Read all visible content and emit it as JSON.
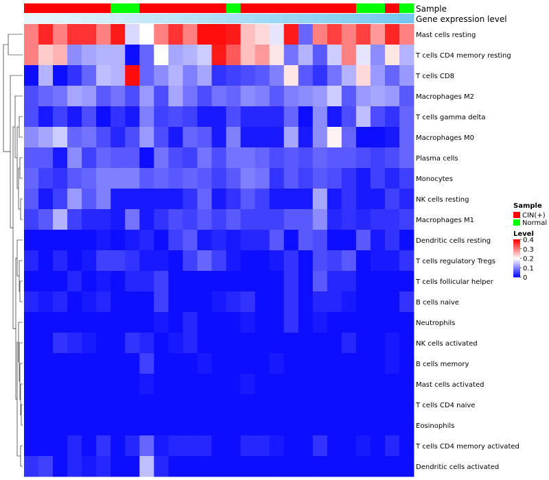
{
  "chart_data": {
    "type": "heatmap",
    "title": "",
    "annotation_tracks": [
      {
        "name": "Sample",
        "values": [
          "CIN(+)",
          "CIN(+)",
          "CIN(+)",
          "CIN(+)",
          "CIN(+)",
          "CIN(+)",
          "Normal",
          "Normal",
          "CIN(+)",
          "CIN(+)",
          "CIN(+)",
          "CIN(+)",
          "CIN(+)",
          "CIN(+)",
          "Normal",
          "CIN(+)",
          "CIN(+)",
          "CIN(+)",
          "CIN(+)",
          "CIN(+)",
          "CIN(+)",
          "CIN(+)",
          "CIN(+)",
          "Normal",
          "Normal",
          "CIN(+)",
          "Normal"
        ]
      },
      {
        "name": "Gene expression level",
        "values": [
          0.05,
          0.08,
          0.1,
          0.13,
          0.16,
          0.19,
          0.22,
          0.25,
          0.28,
          0.31,
          0.34,
          0.37,
          0.4,
          0.43,
          0.46,
          0.49,
          0.52,
          0.55,
          0.58,
          0.61,
          0.64,
          0.67,
          0.7,
          0.73,
          0.76,
          0.79,
          0.82
        ]
      }
    ],
    "rows": [
      "Mast cells resting",
      "T cells CD4 memory resting",
      "T cells CD8",
      "Macrophages M2",
      "T cells gamma delta",
      "Macrophages M0",
      "Plasma cells",
      "Monocytes",
      "NK cells resting",
      "Macrophages M1",
      "Dendritic cells resting",
      "T cells regulatory  Tregs",
      "T cells follicular helper",
      "B cells naive",
      "Neutrophils",
      "NK cells activated",
      "B cells memory",
      "Mast cells activated",
      "T cells CD4 naive",
      "Eosinophils",
      "T cells CD4 memory activated",
      "Dendritic cells activated"
    ],
    "values": [
      [
        0.3,
        0.37,
        0.3,
        0.36,
        0.36,
        0.3,
        0.38,
        0.17,
        0.2,
        0.3,
        0.36,
        0.3,
        0.39,
        0.39,
        0.38,
        0.25,
        0.23,
        0.18,
        0.38,
        0.08,
        0.3,
        0.35,
        0.3,
        0.35,
        0.28,
        0.37,
        0.3
      ],
      [
        0.3,
        0.24,
        0.26,
        0.11,
        0.13,
        0.14,
        0.14,
        0.01,
        0.08,
        0.2,
        0.13,
        0.14,
        0.16,
        0.38,
        0.33,
        0.25,
        0.28,
        0.22,
        0.09,
        0.14,
        0.07,
        0.16,
        0.3,
        0.18,
        0.11,
        0.22,
        0.14
      ],
      [
        0.01,
        0.14,
        0.01,
        0.04,
        0.08,
        0.15,
        0.14,
        0.39,
        0.08,
        0.11,
        0.14,
        0.1,
        0.13,
        0.04,
        0.05,
        0.06,
        0.07,
        0.1,
        0.22,
        0.07,
        0.04,
        0.09,
        0.14,
        0.23,
        0.12,
        0.08,
        0.12
      ],
      [
        0.06,
        0.08,
        0.09,
        0.13,
        0.12,
        0.07,
        0.09,
        0.06,
        0.12,
        0.06,
        0.13,
        0.09,
        0.06,
        0.09,
        0.08,
        0.11,
        0.1,
        0.07,
        0.1,
        0.11,
        0.12,
        0.16,
        0.07,
        0.12,
        0.13,
        0.12,
        0.07
      ],
      [
        0.06,
        0.02,
        0.05,
        0.02,
        0.06,
        0.01,
        0.04,
        0.02,
        0.1,
        0.05,
        0.06,
        0.05,
        0.02,
        0.02,
        0.06,
        0.03,
        0.03,
        0.03,
        0.08,
        0.01,
        0.11,
        0.02,
        0.06,
        0.15,
        0.06,
        0.04,
        0.08
      ],
      [
        0.11,
        0.13,
        0.16,
        0.08,
        0.09,
        0.06,
        0.03,
        0.06,
        0.12,
        0.06,
        0.02,
        0.08,
        0.07,
        0.02,
        0.1,
        0.02,
        0.02,
        0.02,
        0.13,
        0.02,
        0.11,
        0.21,
        0.08,
        0.01,
        0.01,
        0.02,
        0.08
      ],
      [
        0.07,
        0.07,
        0.02,
        0.11,
        0.05,
        0.08,
        0.07,
        0.07,
        0.01,
        0.09,
        0.06,
        0.05,
        0.09,
        0.06,
        0.09,
        0.09,
        0.08,
        0.06,
        0.07,
        0.06,
        0.08,
        0.07,
        0.07,
        0.06,
        0.05,
        0.06,
        0.08
      ],
      [
        0.08,
        0.05,
        0.04,
        0.07,
        0.08,
        0.1,
        0.1,
        0.1,
        0.07,
        0.08,
        0.07,
        0.08,
        0.07,
        0.05,
        0.07,
        0.1,
        0.09,
        0.04,
        0.07,
        0.05,
        0.07,
        0.06,
        0.04,
        0.02,
        0.05,
        0.03,
        0.05
      ],
      [
        0.07,
        0.02,
        0.05,
        0.12,
        0.07,
        0.1,
        0.02,
        0.02,
        0.02,
        0.02,
        0.02,
        0.04,
        0.08,
        0.02,
        0.04,
        0.07,
        0.05,
        0.02,
        0.02,
        0.02,
        0.13,
        0.02,
        0.04,
        0.02,
        0.02,
        0.05,
        0.03
      ],
      [
        0.05,
        0.07,
        0.14,
        0.05,
        0.03,
        0.03,
        0.02,
        0.09,
        0.02,
        0.04,
        0.06,
        0.05,
        0.07,
        0.05,
        0.07,
        0.05,
        0.05,
        0.05,
        0.07,
        0.07,
        0.11,
        0.03,
        0.04,
        0.03,
        0.04,
        0.04,
        0.05
      ],
      [
        0.01,
        0.01,
        0.01,
        0.01,
        0.01,
        0.02,
        0.01,
        0.02,
        0.03,
        0.01,
        0.05,
        0.07,
        0.02,
        0.03,
        0.02,
        0.03,
        0.03,
        0.07,
        0.01,
        0.07,
        0.06,
        0.01,
        0.01,
        0.07,
        0.02,
        0.04,
        0.01
      ],
      [
        0.03,
        0.01,
        0.03,
        0.01,
        0.02,
        0.05,
        0.05,
        0.04,
        0.02,
        0.02,
        0.01,
        0.05,
        0.08,
        0.05,
        0.02,
        0.01,
        0.01,
        0.02,
        0.04,
        0.01,
        0.06,
        0.05,
        0.07,
        0.01,
        0.02,
        0.02,
        0.04
      ],
      [
        0.01,
        0.01,
        0.01,
        0.03,
        0.01,
        0.02,
        0.01,
        0.03,
        0.03,
        0.05,
        0.01,
        0.01,
        0.01,
        0.01,
        0.01,
        0.01,
        0.01,
        0.01,
        0.04,
        0.01,
        0.07,
        0.03,
        0.03,
        0.01,
        0.01,
        0.01,
        0.01
      ],
      [
        0.03,
        0.02,
        0.03,
        0.01,
        0.02,
        0.03,
        0.01,
        0.01,
        0.01,
        0.05,
        0.01,
        0.01,
        0.01,
        0.02,
        0.03,
        0.04,
        0.01,
        0.01,
        0.04,
        0.01,
        0.03,
        0.03,
        0.02,
        0.01,
        0.01,
        0.01,
        0.04
      ],
      [
        0.01,
        0.01,
        0.01,
        0.01,
        0.01,
        0.01,
        0.01,
        0.01,
        0.01,
        0.02,
        0.01,
        0.03,
        0.01,
        0.01,
        0.01,
        0.02,
        0.01,
        0.01,
        0.04,
        0.01,
        0.02,
        0.01,
        0.01,
        0.01,
        0.01,
        0.01,
        0.01
      ],
      [
        0.01,
        0.01,
        0.04,
        0.03,
        0.02,
        0.01,
        0.01,
        0.04,
        0.03,
        0.01,
        0.02,
        0.03,
        0.01,
        0.01,
        0.01,
        0.01,
        0.01,
        0.01,
        0.01,
        0.01,
        0.01,
        0.01,
        0.03,
        0.01,
        0.01,
        0.02,
        0.01
      ],
      [
        0.01,
        0.01,
        0.01,
        0.01,
        0.01,
        0.01,
        0.01,
        0.01,
        0.05,
        0.01,
        0.01,
        0.01,
        0.02,
        0.01,
        0.01,
        0.01,
        0.01,
        0.02,
        0.01,
        0.01,
        0.01,
        0.01,
        0.01,
        0.01,
        0.01,
        0.02,
        0.01
      ],
      [
        0.01,
        0.01,
        0.01,
        0.01,
        0.01,
        0.01,
        0.01,
        0.01,
        0.02,
        0.01,
        0.01,
        0.01,
        0.01,
        0.01,
        0.01,
        0.02,
        0.01,
        0.01,
        0.01,
        0.01,
        0.01,
        0.01,
        0.01,
        0.01,
        0.01,
        0.01,
        0.01
      ],
      [
        0.01,
        0.01,
        0.01,
        0.01,
        0.01,
        0.01,
        0.01,
        0.01,
        0.01,
        0.01,
        0.01,
        0.01,
        0.01,
        0.01,
        0.01,
        0.01,
        0.01,
        0.01,
        0.01,
        0.01,
        0.01,
        0.01,
        0.01,
        0.01,
        0.01,
        0.01,
        0.01
      ],
      [
        0.01,
        0.01,
        0.01,
        0.01,
        0.01,
        0.01,
        0.01,
        0.01,
        0.01,
        0.01,
        0.01,
        0.01,
        0.01,
        0.01,
        0.01,
        0.01,
        0.01,
        0.01,
        0.01,
        0.01,
        0.01,
        0.01,
        0.01,
        0.01,
        0.01,
        0.01,
        0.01
      ],
      [
        0.01,
        0.01,
        0.01,
        0.03,
        0.01,
        0.04,
        0.01,
        0.03,
        0.08,
        0.02,
        0.03,
        0.03,
        0.03,
        0.01,
        0.01,
        0.03,
        0.03,
        0.02,
        0.01,
        0.01,
        0.04,
        0.01,
        0.01,
        0.02,
        0.01,
        0.03,
        0.01
      ],
      [
        0.04,
        0.05,
        0.01,
        0.03,
        0.02,
        0.03,
        0.01,
        0.01,
        0.15,
        0.03,
        0.01,
        0.01,
        0.01,
        0.01,
        0.01,
        0.01,
        0.01,
        0.01,
        0.01,
        0.01,
        0.01,
        0.01,
        0.01,
        0.01,
        0.01,
        0.01,
        0.01
      ]
    ],
    "color_scale": {
      "min": 0,
      "max": 0.4,
      "low": "#0000FF",
      "mid": "#FFFFFF",
      "high": "#FF0000",
      "midpoint": 0.2
    },
    "legends": {
      "sample": {
        "title": "Sample",
        "entries": [
          {
            "label": "CIN(+)",
            "color": "#FF0000"
          },
          {
            "label": "Normal",
            "color": "#00FF00"
          }
        ]
      },
      "level": {
        "title": "Level",
        "ticks": [
          "0.4",
          "0.3",
          "0.2",
          "0.1",
          "0"
        ],
        "tick_values": [
          0.4,
          0.3,
          0.2,
          0.1,
          0
        ]
      }
    },
    "expression_track_colors": {
      "low": "#E8F6FC",
      "high": "#74C8EF"
    },
    "dendrogram": "row dendrogram (hierarchical clustering) on the left"
  }
}
